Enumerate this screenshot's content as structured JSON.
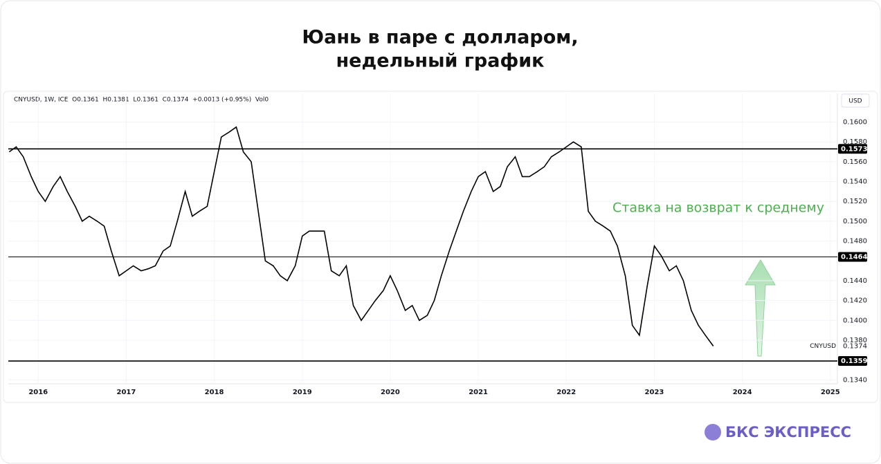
{
  "chart_data": {
    "type": "line",
    "title_lines": [
      "Юань в паре с долларом,",
      "недельный график"
    ],
    "legend_header": "CNYUSD, 1W, ICE  O0.1361  H0.1381  L0.1361  C0.1374  +0.0013 (+0.95%)  Vol0",
    "currency": "USD",
    "annotation": "Ставка на возврат к среднему",
    "brand": "БКС ЭКСПРЕСС",
    "x": [
      2015.67,
      2015.75,
      2015.83,
      2015.92,
      2016.0,
      2016.08,
      2016.17,
      2016.25,
      2016.33,
      2016.42,
      2016.5,
      2016.58,
      2016.67,
      2016.75,
      2016.83,
      2016.92,
      2017.0,
      2017.08,
      2017.17,
      2017.25,
      2017.33,
      2017.42,
      2017.5,
      2017.58,
      2017.67,
      2017.75,
      2017.83,
      2017.92,
      2018.0,
      2018.08,
      2018.17,
      2018.25,
      2018.33,
      2018.42,
      2018.5,
      2018.58,
      2018.67,
      2018.75,
      2018.83,
      2018.92,
      2019.0,
      2019.08,
      2019.17,
      2019.25,
      2019.33,
      2019.42,
      2019.5,
      2019.58,
      2019.67,
      2019.75,
      2019.83,
      2019.92,
      2020.0,
      2020.08,
      2020.17,
      2020.25,
      2020.33,
      2020.42,
      2020.5,
      2020.58,
      2020.67,
      2020.75,
      2020.83,
      2020.92,
      2021.0,
      2021.08,
      2021.17,
      2021.25,
      2021.33,
      2021.42,
      2021.5,
      2021.58,
      2021.67,
      2021.75,
      2021.83,
      2021.92,
      2022.0,
      2022.08,
      2022.17,
      2022.25,
      2022.33,
      2022.42,
      2022.5,
      2022.58,
      2022.67,
      2022.75,
      2022.83,
      2022.92,
      2023.0,
      2023.08,
      2023.17,
      2023.25,
      2023.33,
      2023.42,
      2023.5,
      2023.58,
      2023.67
    ],
    "series": [
      {
        "name": "CNYUSD",
        "color": "#000000",
        "values": [
          0.157,
          0.1575,
          0.1565,
          0.1545,
          0.153,
          0.152,
          0.1535,
          0.1545,
          0.153,
          0.1515,
          0.15,
          0.1505,
          0.15,
          0.1495,
          0.147,
          0.1445,
          0.145,
          0.1455,
          0.145,
          0.1452,
          0.1455,
          0.147,
          0.1475,
          0.15,
          0.153,
          0.1505,
          0.151,
          0.1515,
          0.155,
          0.1585,
          0.159,
          0.1595,
          0.157,
          0.156,
          0.151,
          0.146,
          0.1455,
          0.1445,
          0.144,
          0.1455,
          0.1485,
          0.149,
          0.149,
          0.149,
          0.145,
          0.1445,
          0.1455,
          0.1415,
          0.14,
          0.141,
          0.142,
          0.143,
          0.1445,
          0.143,
          0.141,
          0.1415,
          0.14,
          0.1405,
          0.142,
          0.1445,
          0.147,
          0.149,
          0.151,
          0.153,
          0.1545,
          0.155,
          0.153,
          0.1535,
          0.1555,
          0.1565,
          0.1545,
          0.1545,
          0.155,
          0.1555,
          0.1565,
          0.157,
          0.1575,
          0.158,
          0.1575,
          0.151,
          0.15,
          0.1495,
          0.149,
          0.1475,
          0.1445,
          0.1395,
          0.1385,
          0.1435,
          0.1475,
          0.1465,
          0.145,
          0.1455,
          0.144,
          0.141,
          0.1395,
          0.1385,
          0.1374
        ]
      }
    ],
    "levels": [
      0.1573,
      0.1464,
      0.1359
    ],
    "xlim": [
      2015.66,
      2025.08
    ],
    "xticks": [
      2016,
      2017,
      2018,
      2019,
      2020,
      2021,
      2022,
      2023,
      2024,
      2025
    ],
    "ylim": [
      0.1336,
      0.1629
    ],
    "yticks": [
      {
        "value": 0.134,
        "label": "0.1340"
      },
      {
        "value": 0.138,
        "label": "0.1380"
      },
      {
        "value": 0.14,
        "label": "0.1400"
      },
      {
        "value": 0.142,
        "label": "0.1420"
      },
      {
        "value": 0.144,
        "label": "0.1440"
      },
      {
        "value": 0.148,
        "label": "0.1480"
      },
      {
        "value": 0.15,
        "label": "0.1500"
      },
      {
        "value": 0.152,
        "label": "0.1520"
      },
      {
        "value": 0.154,
        "label": "0.1540"
      },
      {
        "value": 0.156,
        "label": "0.1560"
      },
      {
        "value": 0.158,
        "label": "0.1580"
      },
      {
        "value": 0.16,
        "label": "0.1600"
      }
    ],
    "grid": true
  }
}
